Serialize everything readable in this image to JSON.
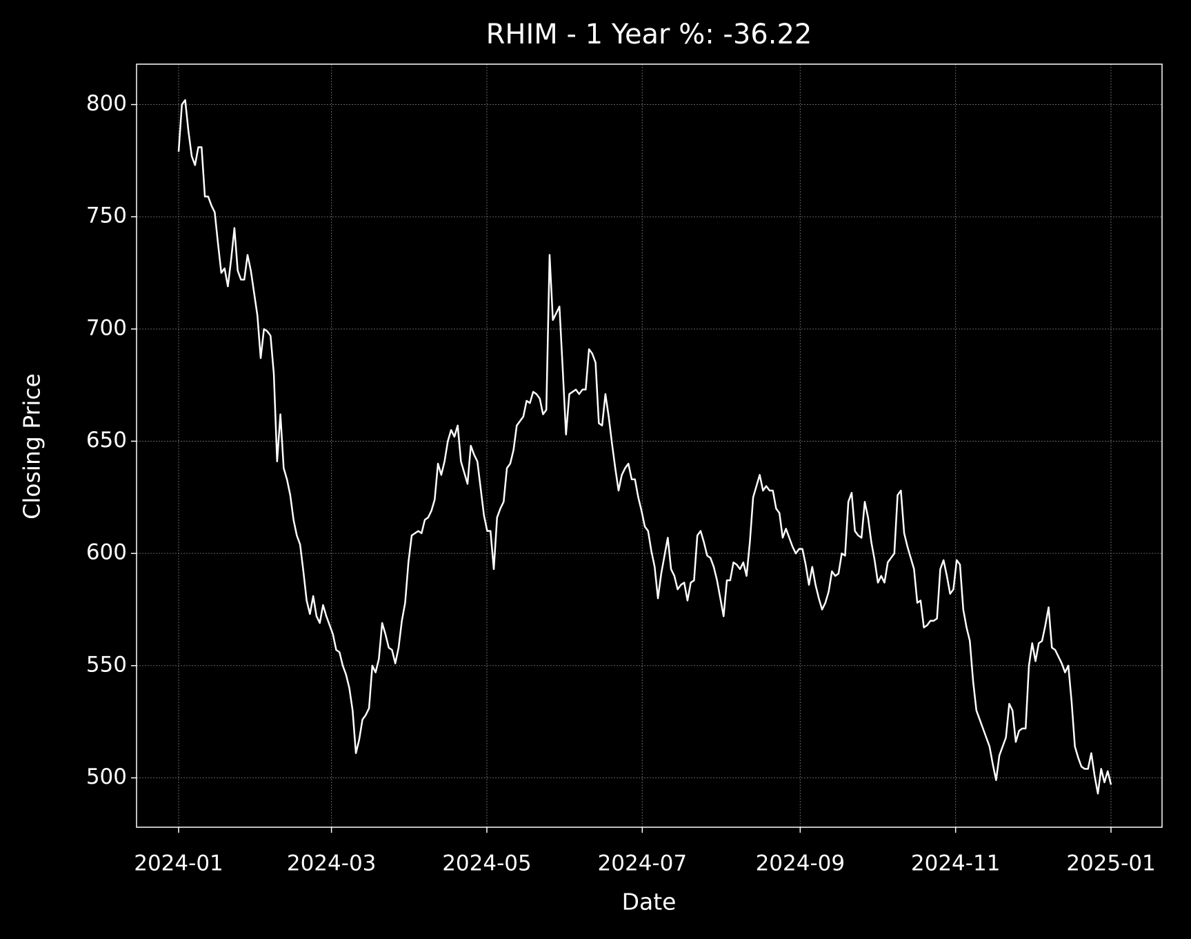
{
  "chart_data": {
    "type": "line",
    "title": "RHIM - 1 Year %: -36.22",
    "xlabel": "Date",
    "ylabel": "Closing Price",
    "xticks": [
      "2024-01",
      "2024-03",
      "2024-05",
      "2024-07",
      "2024-09",
      "2024-11",
      "2025-01"
    ],
    "ylim": [
      478,
      818
    ],
    "yticks": [
      500,
      550,
      600,
      650,
      700,
      750,
      800
    ],
    "grid": true,
    "color": "#ffffff",
    "values": [
      779,
      800,
      802,
      788,
      777,
      773,
      781,
      781,
      759,
      759,
      755,
      752,
      738,
      725,
      727,
      719,
      731,
      745,
      726,
      722,
      722,
      733,
      726,
      716,
      706,
      687,
      700,
      699,
      697,
      680,
      641,
      662,
      638,
      633,
      626,
      615,
      608,
      604,
      592,
      579,
      573,
      581,
      572,
      569,
      577,
      572,
      568,
      564,
      557,
      556,
      550,
      546,
      540,
      530,
      511,
      517,
      526,
      528,
      531,
      550,
      547,
      553,
      569,
      564,
      558,
      557,
      551,
      558,
      570,
      578,
      596,
      608,
      609,
      610,
      609,
      615,
      616,
      619,
      624,
      640,
      635,
      641,
      650,
      655,
      652,
      657,
      641,
      636,
      631,
      648,
      644,
      641,
      629,
      617,
      610,
      610,
      593,
      616,
      620,
      623,
      638,
      640,
      646,
      657,
      659,
      661,
      668,
      667,
      672,
      671,
      669,
      662,
      664,
      733,
      704,
      707,
      710,
      682,
      653,
      671,
      672,
      673,
      671,
      673,
      673,
      691,
      689,
      685,
      658,
      657,
      671,
      661,
      649,
      638,
      628,
      635,
      638,
      640,
      633,
      633,
      625,
      619,
      612,
      610,
      601,
      594,
      580,
      591,
      599,
      607,
      593,
      590,
      584,
      586,
      587,
      579,
      587,
      588,
      608,
      610,
      605,
      599,
      598,
      594,
      588,
      580,
      572,
      588,
      588,
      596,
      595,
      593,
      596,
      590,
      605,
      625,
      630,
      635,
      628,
      630,
      628,
      628,
      620,
      618,
      607,
      611,
      607,
      603,
      600,
      602,
      602,
      595,
      586,
      594,
      586,
      580,
      575,
      578,
      583,
      592,
      590,
      591,
      600,
      599,
      623,
      627,
      610,
      608,
      607,
      623,
      616,
      605,
      597,
      587,
      590,
      587,
      596,
      598,
      600,
      626,
      628,
      609,
      603,
      598,
      593,
      578,
      579,
      567,
      568,
      570,
      570,
      571,
      593,
      597,
      590,
      582,
      584,
      597,
      595,
      575,
      567,
      561,
      543,
      530,
      526,
      522,
      518,
      514,
      506,
      499,
      510,
      514,
      518,
      533,
      530,
      516,
      521,
      522,
      522,
      550,
      560,
      552,
      560,
      561,
      568,
      576,
      558,
      557,
      554,
      551,
      547,
      550,
      534,
      514,
      509,
      505,
      504,
      504,
      511,
      501,
      493,
      504,
      498,
      503,
      497
    ]
  }
}
